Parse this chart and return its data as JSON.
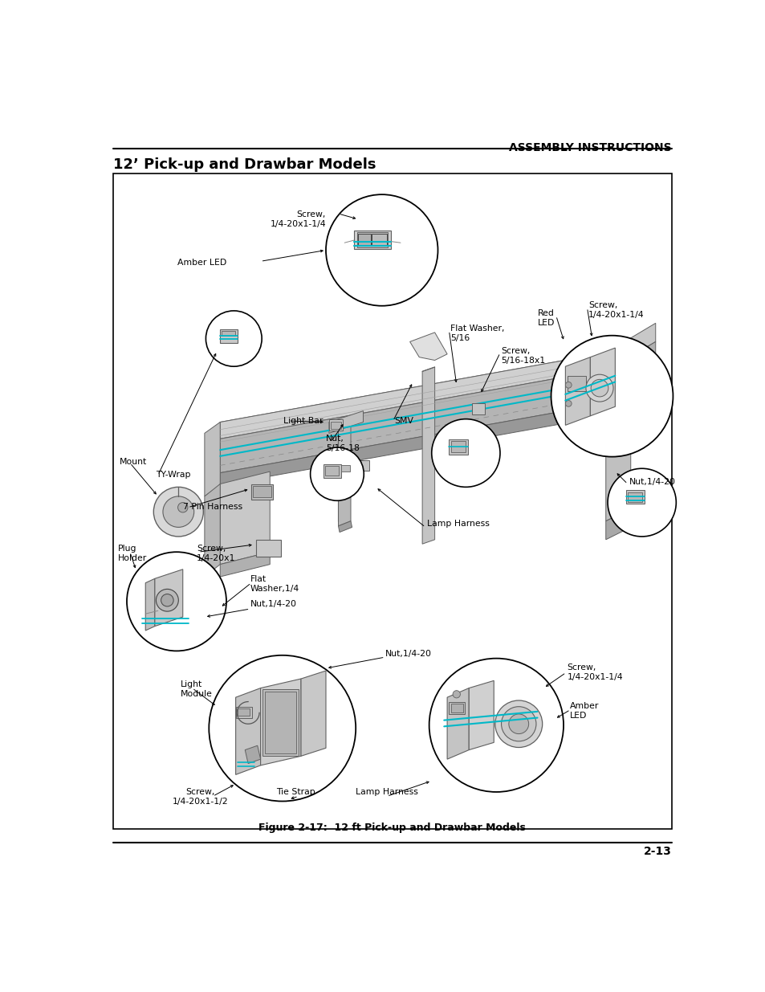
{
  "page_title": "12’ Pick-up and Drawbar Models",
  "header_text": "ASSEMBLY INSTRUCTIONS",
  "footer_text": "2-13",
  "figure_caption": "Figure 2-17:  12 ft Pick-up and Drawbar Models",
  "bg_color": "#ffffff",
  "text_color": "#000000",
  "cyan_color": "#00b8c8",
  "gray1": "#c8c8c8",
  "gray2": "#a0a0a0",
  "gray3": "#e0e0e0",
  "dark_gray": "#606060",
  "light_gray": "#d8d8d8"
}
